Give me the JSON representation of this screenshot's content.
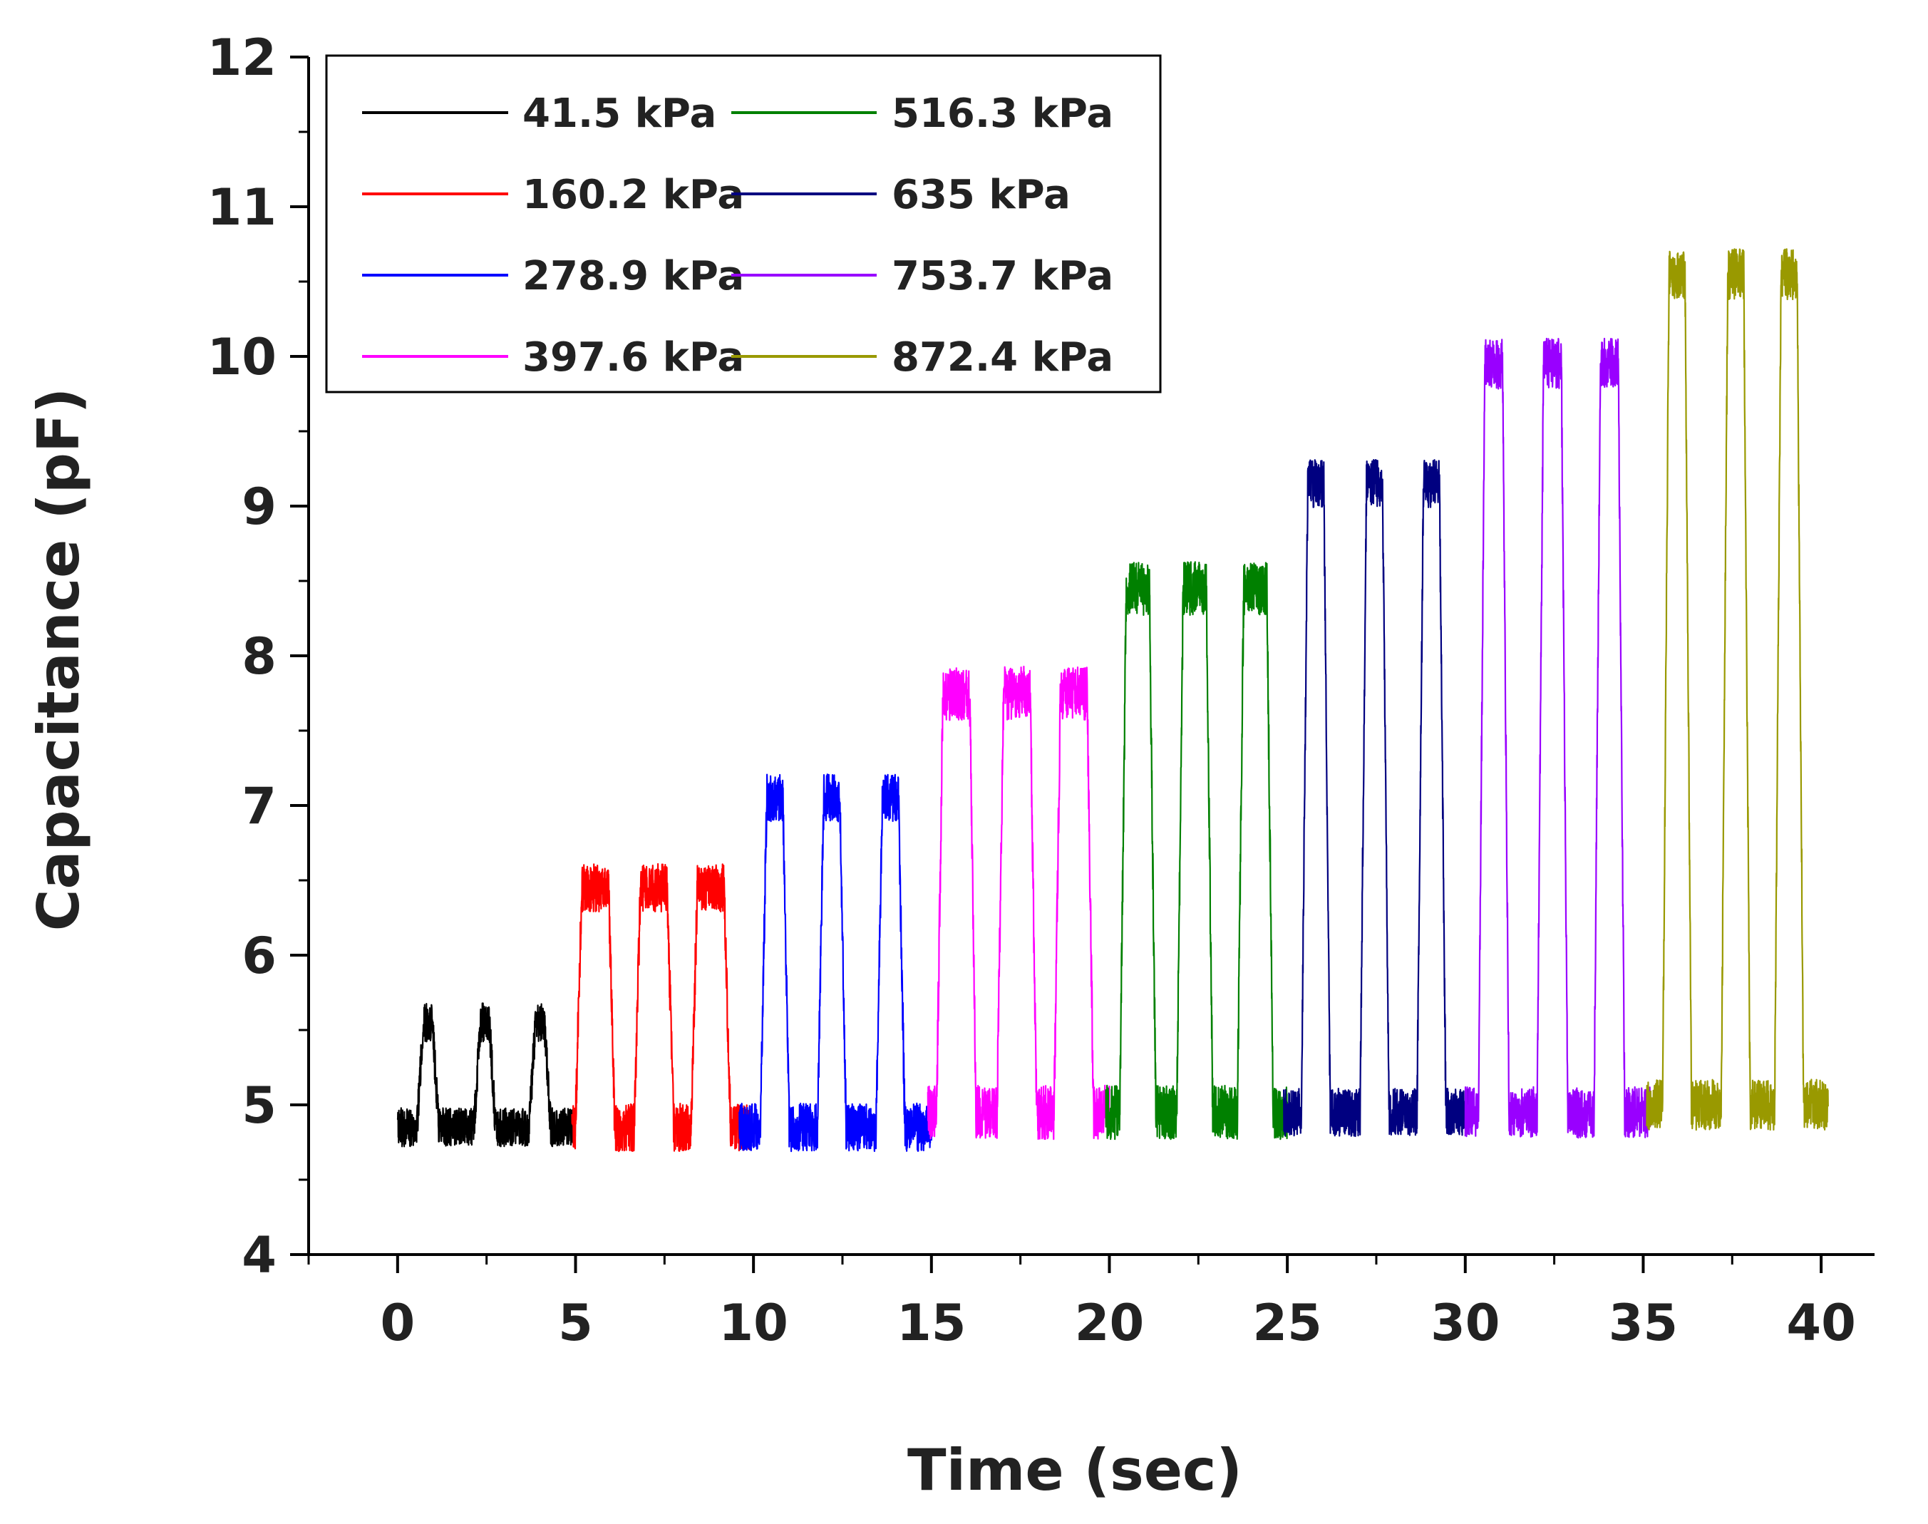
{
  "chart_data": {
    "type": "line",
    "title": "",
    "xlabel": "Time (sec)",
    "ylabel": "Capacitance (pF)",
    "xlim": [
      -2.5,
      41.5
    ],
    "ylim": [
      4,
      12
    ],
    "xticks": [
      0,
      5,
      10,
      15,
      20,
      25,
      30,
      35,
      40
    ],
    "xtick_labels": [
      "0",
      "5",
      "10",
      "15",
      "20",
      "25",
      "30",
      "35",
      "40"
    ],
    "yticks": [
      4,
      5,
      6,
      7,
      8,
      9,
      10,
      11,
      12
    ],
    "ytick_labels": [
      "4",
      "5",
      "6",
      "7",
      "8",
      "9",
      "10",
      "11",
      "12"
    ],
    "grid": false,
    "legend_position": "top-left",
    "legend_columns": 2,
    "series": [
      {
        "name": "41.5 kPa",
        "color": "#000000",
        "t_start": 0,
        "t_end": 5,
        "baseline": 4.85,
        "peak": 5.55,
        "peak_times": [
          0.85,
          2.45,
          4.0
        ],
        "plateau_width": 0.25,
        "noise": 0.13
      },
      {
        "name": "160.2 kPa",
        "color": "#ff0000",
        "t_start": 4.9,
        "t_end": 9.9,
        "baseline": 4.85,
        "peak": 6.45,
        "peak_times": [
          5.55,
          7.2,
          8.8
        ],
        "plateau_width": 0.75,
        "noise": 0.16
      },
      {
        "name": "278.9 kPa",
        "color": "#0000ff",
        "t_start": 9.6,
        "t_end": 15.0,
        "baseline": 4.85,
        "peak": 7.05,
        "peak_times": [
          10.6,
          12.2,
          13.85
        ],
        "plateau_width": 0.45,
        "noise": 0.16
      },
      {
        "name": "397.6 kPa",
        "color": "#ff00ff",
        "t_start": 14.9,
        "t_end": 20.0,
        "baseline": 4.95,
        "peak": 7.75,
        "peak_times": [
          15.7,
          17.4,
          19.0
        ],
        "plateau_width": 0.75,
        "noise": 0.18
      },
      {
        "name": "516.3 kPa",
        "color": "#008000",
        "t_start": 19.9,
        "t_end": 25.0,
        "baseline": 4.95,
        "peak": 8.45,
        "peak_times": [
          20.8,
          22.4,
          24.1
        ],
        "plateau_width": 0.65,
        "noise": 0.18
      },
      {
        "name": "635 kPa",
        "color": "#000080",
        "t_start": 24.9,
        "t_end": 30.1,
        "baseline": 4.95,
        "peak": 9.15,
        "peak_times": [
          25.8,
          27.45,
          29.05
        ],
        "plateau_width": 0.45,
        "noise": 0.16
      },
      {
        "name": "753.7 kPa",
        "color": "#9900ff",
        "t_start": 30.0,
        "t_end": 35.2,
        "baseline": 4.95,
        "peak": 9.95,
        "peak_times": [
          30.8,
          32.45,
          34.05
        ],
        "plateau_width": 0.5,
        "noise": 0.17
      },
      {
        "name": "872.4 kPa",
        "color": "#999900",
        "t_start": 35.1,
        "t_end": 40.2,
        "baseline": 5.0,
        "peak": 10.55,
        "peak_times": [
          35.95,
          37.6,
          39.1
        ],
        "plateau_width": 0.45,
        "noise": 0.17
      }
    ]
  }
}
